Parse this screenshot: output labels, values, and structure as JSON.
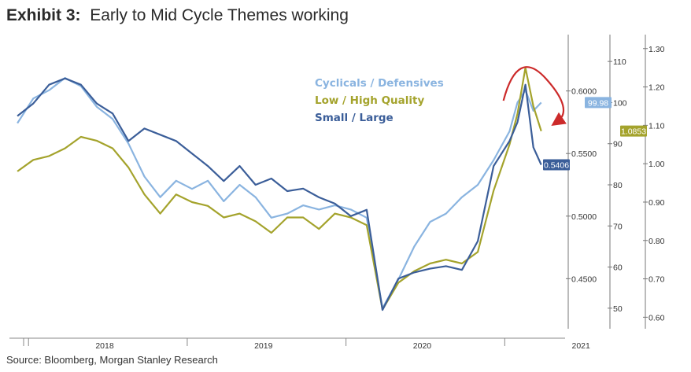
{
  "header": {
    "exhibit_label": "Exhibit 3:",
    "title": "Early to Mid Cycle Themes working"
  },
  "footer": {
    "source": "Source: Bloomberg, Morgan Stanley Research"
  },
  "colors": {
    "cyclicals": "#8ab4e0",
    "low_high_quality": "#a4a32c",
    "small_large": "#3b5e99",
    "arrow": "#cc2a2a"
  },
  "chart_data": {
    "type": "line",
    "title": "Early to Mid Cycle Themes working",
    "x_axis": {
      "labels": [
        "2018",
        "2019",
        "2020",
        "2021"
      ],
      "range": [
        "2017-11",
        "2021-03"
      ]
    },
    "y_axes": [
      {
        "id": "axis1",
        "series": "Small / Large",
        "ylim": [
          0.41,
          0.64
        ],
        "ticks": [
          "0.4500",
          "0.5000",
          "0.5500",
          "0.6000"
        ]
      },
      {
        "id": "axis2",
        "series": "Cyclicals / Defensives",
        "ylim": [
          45,
          115
        ],
        "ticks": [
          "50",
          "60",
          "70",
          "80",
          "90",
          "100",
          "110"
        ]
      },
      {
        "id": "axis3",
        "series": "Low / High Quality",
        "ylim": [
          0.57,
          1.32
        ],
        "ticks": [
          "0.60",
          "0.70",
          "0.80",
          "0.90",
          "1.00",
          "1.10",
          "1.20",
          "1.30"
        ]
      }
    ],
    "series": [
      {
        "name": "Cyclicals / Defensives",
        "axis": "axis2",
        "color": "#8ab4e0",
        "last_value_label": "99.98",
        "points": [
          [
            2017.9,
            95
          ],
          [
            2018.0,
            101
          ],
          [
            2018.1,
            103
          ],
          [
            2018.2,
            106
          ],
          [
            2018.3,
            104
          ],
          [
            2018.4,
            99
          ],
          [
            2018.5,
            96
          ],
          [
            2018.6,
            90
          ],
          [
            2018.7,
            82
          ],
          [
            2018.8,
            77
          ],
          [
            2018.9,
            81
          ],
          [
            2019.0,
            79
          ],
          [
            2019.1,
            81
          ],
          [
            2019.2,
            76
          ],
          [
            2019.3,
            80
          ],
          [
            2019.4,
            77
          ],
          [
            2019.5,
            72
          ],
          [
            2019.6,
            73
          ],
          [
            2019.7,
            75
          ],
          [
            2019.8,
            74
          ],
          [
            2019.9,
            75
          ],
          [
            2020.0,
            74
          ],
          [
            2020.1,
            72
          ],
          [
            2020.2,
            50
          ],
          [
            2020.3,
            57
          ],
          [
            2020.4,
            65
          ],
          [
            2020.5,
            71
          ],
          [
            2020.6,
            73
          ],
          [
            2020.7,
            77
          ],
          [
            2020.8,
            80
          ],
          [
            2020.9,
            86
          ],
          [
            2021.0,
            93
          ],
          [
            2021.05,
            100
          ],
          [
            2021.1,
            103
          ],
          [
            2021.15,
            98
          ],
          [
            2021.2,
            100
          ]
        ]
      },
      {
        "name": "Low / High Quality",
        "axis": "axis3",
        "color": "#a4a32c",
        "last_value_label": "1.0853",
        "points": [
          [
            2017.9,
            0.98
          ],
          [
            2018.0,
            1.01
          ],
          [
            2018.1,
            1.02
          ],
          [
            2018.2,
            1.04
          ],
          [
            2018.3,
            1.07
          ],
          [
            2018.4,
            1.06
          ],
          [
            2018.5,
            1.04
          ],
          [
            2018.6,
            0.99
          ],
          [
            2018.7,
            0.92
          ],
          [
            2018.8,
            0.87
          ],
          [
            2018.9,
            0.92
          ],
          [
            2019.0,
            0.9
          ],
          [
            2019.1,
            0.89
          ],
          [
            2019.2,
            0.86
          ],
          [
            2019.3,
            0.87
          ],
          [
            2019.4,
            0.85
          ],
          [
            2019.5,
            0.82
          ],
          [
            2019.6,
            0.86
          ],
          [
            2019.7,
            0.86
          ],
          [
            2019.8,
            0.83
          ],
          [
            2019.9,
            0.87
          ],
          [
            2020.0,
            0.86
          ],
          [
            2020.1,
            0.84
          ],
          [
            2020.2,
            0.62
          ],
          [
            2020.3,
            0.69
          ],
          [
            2020.4,
            0.72
          ],
          [
            2020.5,
            0.74
          ],
          [
            2020.6,
            0.75
          ],
          [
            2020.7,
            0.74
          ],
          [
            2020.8,
            0.77
          ],
          [
            2020.9,
            0.93
          ],
          [
            2021.0,
            1.05
          ],
          [
            2021.05,
            1.13
          ],
          [
            2021.1,
            1.25
          ],
          [
            2021.15,
            1.15
          ],
          [
            2021.2,
            1.085
          ]
        ]
      },
      {
        "name": "Small / Large",
        "axis": "axis1",
        "color": "#3b5e99",
        "last_value_label": "0.5406",
        "points": [
          [
            2017.9,
            0.58
          ],
          [
            2018.0,
            0.59
          ],
          [
            2018.1,
            0.605
          ],
          [
            2018.2,
            0.61
          ],
          [
            2018.3,
            0.605
          ],
          [
            2018.4,
            0.59
          ],
          [
            2018.5,
            0.582
          ],
          [
            2018.6,
            0.56
          ],
          [
            2018.7,
            0.57
          ],
          [
            2018.8,
            0.565
          ],
          [
            2018.9,
            0.56
          ],
          [
            2019.0,
            0.55
          ],
          [
            2019.1,
            0.54
          ],
          [
            2019.2,
            0.528
          ],
          [
            2019.3,
            0.54
          ],
          [
            2019.4,
            0.525
          ],
          [
            2019.5,
            0.53
          ],
          [
            2019.6,
            0.52
          ],
          [
            2019.7,
            0.522
          ],
          [
            2019.8,
            0.515
          ],
          [
            2019.9,
            0.51
          ],
          [
            2020.0,
            0.5
          ],
          [
            2020.1,
            0.505
          ],
          [
            2020.2,
            0.425
          ],
          [
            2020.3,
            0.45
          ],
          [
            2020.4,
            0.455
          ],
          [
            2020.5,
            0.458
          ],
          [
            2020.6,
            0.46
          ],
          [
            2020.7,
            0.457
          ],
          [
            2020.8,
            0.48
          ],
          [
            2020.9,
            0.54
          ],
          [
            2021.0,
            0.56
          ],
          [
            2021.05,
            0.575
          ],
          [
            2021.1,
            0.605
          ],
          [
            2021.15,
            0.555
          ],
          [
            2021.2,
            0.541
          ]
        ]
      }
    ],
    "annotations": [
      "red arrow indicating peak and reversal"
    ]
  }
}
